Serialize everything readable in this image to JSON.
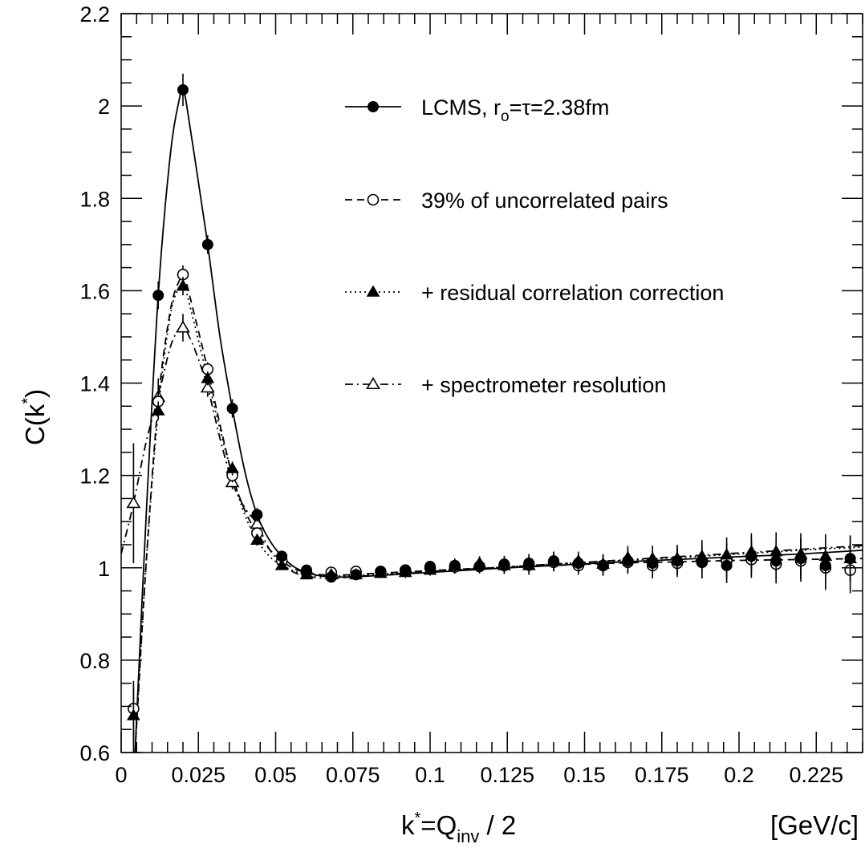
{
  "chart_data": {
    "type": "scatter",
    "xlabel": {
      "main": "k",
      "sup": "*",
      "eq": "=Q",
      "sub": "inv",
      "rest": " / 2"
    },
    "xunit": "[GeV/c]",
    "ylabel": {
      "main": "C(k",
      "sup": "*",
      "rest": ")"
    },
    "xlim": [
      0,
      0.24
    ],
    "ylim": [
      0.6,
      2.2
    ],
    "xticks": [
      "0",
      "0.025",
      "0.05",
      "0.075",
      "0.1",
      "0.125",
      "0.15",
      "0.175",
      "0.2",
      "0.225"
    ],
    "yticks": [
      "0.6",
      "0.8",
      "1",
      "1.2",
      "1.4",
      "1.6",
      "1.8",
      "2",
      "2.2"
    ],
    "grid": false,
    "legend_position": "top-right",
    "series": [
      {
        "name": "LCMS, r",
        "name_sub": "o",
        "name_rest": "=τ=2.38fm",
        "marker": "filled-circle",
        "line": "solid",
        "x": [
          0.004,
          0.012,
          0.02,
          0.028,
          0.036,
          0.044,
          0.052,
          0.06,
          0.068,
          0.076,
          0.084,
          0.092,
          0.1,
          0.108,
          0.116,
          0.124,
          0.132,
          0.14,
          0.148,
          0.156,
          0.164,
          0.172,
          0.18,
          0.188,
          0.196,
          0.204,
          0.212,
          0.22,
          0.228,
          0.236
        ],
        "y": [
          0.55,
          1.59,
          2.035,
          1.7,
          1.345,
          1.115,
          1.025,
          0.995,
          0.98,
          0.985,
          0.99,
          0.993,
          1.003,
          1.005,
          1.003,
          1.008,
          1.01,
          1.015,
          1.01,
          1.005,
          1.015,
          1.01,
          1.015,
          1.012,
          1.005,
          1.025,
          1.015,
          1.02,
          1.005,
          1.02
        ],
        "err": [
          0.1,
          0.03,
          0.035,
          0.02,
          0.02,
          0.015,
          0.012,
          0.01,
          0.01,
          0.01,
          0.01,
          0.012,
          0.012,
          0.015,
          0.015,
          0.018,
          0.02,
          0.02,
          0.02,
          0.022,
          0.025,
          0.028,
          0.03,
          0.035,
          0.038,
          0.04,
          0.042,
          0.045,
          0.048,
          0.05
        ],
        "curve_x": [
          0.0045,
          0.008,
          0.012,
          0.016,
          0.019,
          0.02,
          0.021,
          0.024,
          0.028,
          0.032,
          0.036,
          0.04,
          0.044,
          0.048,
          0.052,
          0.056,
          0.06,
          0.065,
          0.07,
          0.08,
          0.1,
          0.12,
          0.14,
          0.16,
          0.18,
          0.2,
          0.22,
          0.24
        ],
        "curve_y": [
          0.6,
          1.1,
          1.59,
          1.9,
          2.02,
          2.035,
          2.01,
          1.88,
          1.7,
          1.5,
          1.345,
          1.21,
          1.115,
          1.06,
          1.025,
          1.002,
          0.99,
          0.982,
          0.98,
          0.982,
          0.99,
          0.998,
          1.005,
          1.012,
          1.018,
          1.024,
          1.03,
          1.038
        ]
      },
      {
        "name": "39% of uncorrelated pairs",
        "marker": "open-circle",
        "line": "dashed",
        "x": [
          0.004,
          0.012,
          0.02,
          0.028,
          0.036,
          0.044,
          0.052,
          0.06,
          0.068,
          0.076,
          0.084,
          0.092,
          0.1,
          0.108,
          0.116,
          0.124,
          0.132,
          0.14,
          0.148,
          0.156,
          0.164,
          0.172,
          0.18,
          0.188,
          0.196,
          0.204,
          0.212,
          0.22,
          0.228,
          0.236
        ],
        "y": [
          0.695,
          1.36,
          1.635,
          1.43,
          1.2,
          1.075,
          1.015,
          0.99,
          0.99,
          0.992,
          0.992,
          0.995,
          1.0,
          1.002,
          1.003,
          1.005,
          1.006,
          1.012,
          1.005,
          1.005,
          1.012,
          1.005,
          1.01,
          1.012,
          1.015,
          1.018,
          1.008,
          1.015,
          1.0,
          0.995
        ],
        "err": [
          0.06,
          0.02,
          0.02,
          0.015,
          0.015,
          0.012,
          0.01,
          0.01,
          0.01,
          0.01,
          0.01,
          0.012,
          0.012,
          0.015,
          0.015,
          0.018,
          0.02,
          0.02,
          0.02,
          0.022,
          0.025,
          0.028,
          0.03,
          0.035,
          0.038,
          0.04,
          0.042,
          0.045,
          0.048,
          0.05
        ],
        "curve_x": [
          0.0045,
          0.008,
          0.012,
          0.016,
          0.019,
          0.02,
          0.021,
          0.024,
          0.028,
          0.032,
          0.036,
          0.04,
          0.044,
          0.048,
          0.052,
          0.056,
          0.06,
          0.065,
          0.07,
          0.08,
          0.1,
          0.12,
          0.14,
          0.16,
          0.18,
          0.2,
          0.22,
          0.24
        ],
        "curve_y": [
          0.6,
          1.0,
          1.36,
          1.56,
          1.625,
          1.635,
          1.62,
          1.54,
          1.43,
          1.31,
          1.2,
          1.125,
          1.075,
          1.04,
          1.015,
          0.998,
          0.99,
          0.985,
          0.984,
          0.987,
          0.994,
          1.0,
          1.005,
          1.01,
          1.013,
          1.016,
          1.018,
          1.02
        ]
      },
      {
        "name": "+ residual correlation correction",
        "marker": "filled-triangle",
        "line": "dotted",
        "x": [
          0.004,
          0.012,
          0.02,
          0.028,
          0.036,
          0.044,
          0.052,
          0.06,
          0.068,
          0.076,
          0.084,
          0.092,
          0.1,
          0.108,
          0.116,
          0.124,
          0.132,
          0.14,
          0.148,
          0.156,
          0.164,
          0.172,
          0.18,
          0.188,
          0.196,
          0.204,
          0.212,
          0.22,
          0.228,
          0.236
        ],
        "y": [
          0.68,
          1.34,
          1.61,
          1.41,
          1.215,
          1.06,
          1.005,
          0.985,
          0.985,
          0.985,
          0.988,
          0.99,
          0.995,
          1.005,
          1.01,
          1.005,
          1.005,
          1.015,
          1.015,
          1.008,
          1.022,
          1.02,
          1.02,
          1.025,
          1.028,
          1.035,
          1.035,
          1.03,
          1.025,
          1.02
        ],
        "err": [
          0.06,
          0.02,
          0.02,
          0.015,
          0.015,
          0.012,
          0.01,
          0.01,
          0.01,
          0.01,
          0.01,
          0.012,
          0.012,
          0.015,
          0.015,
          0.018,
          0.02,
          0.02,
          0.02,
          0.022,
          0.025,
          0.028,
          0.03,
          0.035,
          0.038,
          0.04,
          0.042,
          0.045,
          0.048,
          0.05
        ],
        "curve_x": [
          0.0045,
          0.008,
          0.012,
          0.016,
          0.019,
          0.02,
          0.021,
          0.024,
          0.028,
          0.032,
          0.036,
          0.04,
          0.044,
          0.048,
          0.052,
          0.056,
          0.06,
          0.065,
          0.07,
          0.08,
          0.1,
          0.12,
          0.14,
          0.16,
          0.18,
          0.2,
          0.22,
          0.24
        ],
        "curve_y": [
          0.6,
          1.0,
          1.34,
          1.55,
          1.61,
          1.615,
          1.6,
          1.52,
          1.41,
          1.3,
          1.2,
          1.115,
          1.06,
          1.025,
          1.005,
          0.993,
          0.985,
          0.982,
          0.982,
          0.985,
          0.993,
          1.0,
          1.008,
          1.015,
          1.022,
          1.03,
          1.038,
          1.045
        ]
      },
      {
        "name": "+ spectrometer resolution",
        "marker": "open-triangle",
        "line": "dash-dot",
        "x": [
          0.004,
          0.012,
          0.02,
          0.028,
          0.036,
          0.044
        ],
        "y": [
          1.14,
          1.37,
          1.52,
          1.39,
          1.185,
          1.095
        ],
        "err": [
          0.13,
          0.04,
          0.03,
          0.02,
          0.015,
          0.012
        ],
        "curve_x": [
          0.0,
          0.004,
          0.008,
          0.012,
          0.016,
          0.019,
          0.02,
          0.021,
          0.024,
          0.028,
          0.032,
          0.036,
          0.04,
          0.044,
          0.048,
          0.052,
          0.056,
          0.06,
          0.065,
          0.07,
          0.08,
          0.1,
          0.12,
          0.14,
          0.16,
          0.18,
          0.2,
          0.22,
          0.24
        ],
        "curve_y": [
          1.03,
          1.14,
          1.27,
          1.37,
          1.48,
          1.52,
          1.525,
          1.515,
          1.47,
          1.39,
          1.28,
          1.185,
          1.13,
          1.095,
          1.04,
          1.01,
          0.99,
          0.982,
          0.978,
          0.978,
          0.983,
          0.992,
          1.0,
          1.008,
          1.016,
          1.024,
          1.032,
          1.04,
          1.048
        ]
      }
    ]
  }
}
